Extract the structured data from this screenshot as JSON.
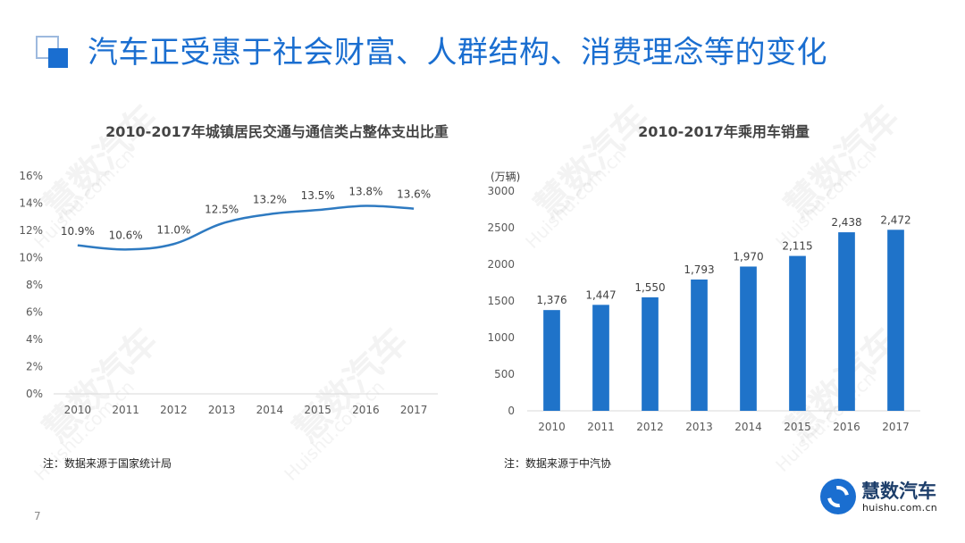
{
  "slide": {
    "title": "汽车正受惠于社会财富、人群结构、消费理念等的变化",
    "page_number": "7"
  },
  "watermark": {
    "brand": "慧数汽车",
    "url": "Huishu.com.cn"
  },
  "logo": {
    "name": "慧数汽车",
    "url": "huishu.com.cn"
  },
  "colors": {
    "accent": "#1a6ed0",
    "line": "#2e7ac1",
    "bar": "#1f73c9"
  },
  "chart_data": [
    {
      "type": "line",
      "title": "2010-2017年城镇居民交通与通信类占整体支出比重",
      "categories": [
        "2010",
        "2011",
        "2012",
        "2013",
        "2014",
        "2015",
        "2016",
        "2017"
      ],
      "values": [
        10.9,
        10.6,
        11.0,
        12.5,
        13.2,
        13.5,
        13.8,
        13.6
      ],
      "data_labels": [
        "10.9%",
        "10.6%",
        "11.0%",
        "12.5%",
        "13.2%",
        "13.5%",
        "13.8%",
        "13.6%"
      ],
      "ylim": [
        0,
        16
      ],
      "yticks": [
        "0%",
        "2%",
        "4%",
        "6%",
        "8%",
        "10%",
        "12%",
        "14%",
        "16%"
      ],
      "xlabel": "",
      "ylabel": "",
      "grid": false,
      "smooth": true,
      "note": "注：数据来源于国家统计局"
    },
    {
      "type": "bar",
      "title": "2010-2017年乘用车销量",
      "unit_label": "(万辆)",
      "categories": [
        "2010",
        "2011",
        "2012",
        "2013",
        "2014",
        "2015",
        "2016",
        "2017"
      ],
      "values": [
        1376,
        1447,
        1550,
        1793,
        1970,
        2115,
        2438,
        2472
      ],
      "data_labels": [
        "1,376",
        "1,447",
        "1,550",
        "1,793",
        "1,970",
        "2,115",
        "2,438",
        "2,472"
      ],
      "ylim": [
        0,
        3000
      ],
      "yticks": [
        "0",
        "500",
        "1000",
        "1500",
        "2000",
        "2500",
        "3000"
      ],
      "xlabel": "",
      "ylabel": "",
      "grid": false,
      "note": "注：数据来源于中汽协"
    }
  ]
}
